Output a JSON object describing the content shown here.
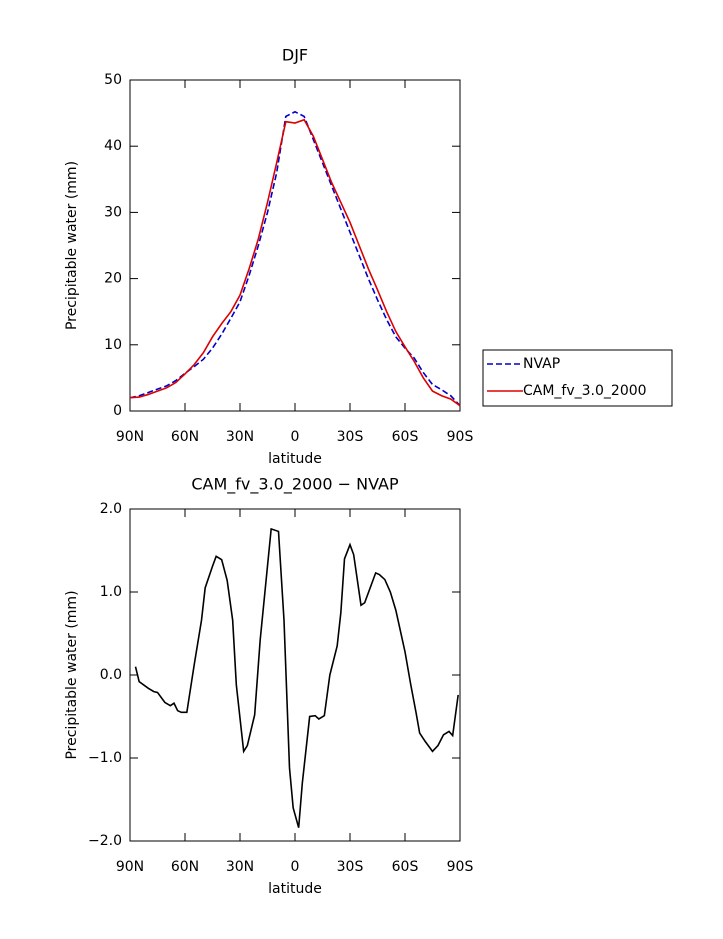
{
  "chart_data": [
    {
      "type": "line",
      "title": "DJF",
      "xlabel": "latitude",
      "ylabel": "Precipitable water (mm)",
      "x": [
        90,
        85,
        80,
        75,
        70,
        65,
        60,
        55,
        50,
        45,
        40,
        35,
        30,
        25,
        20,
        15,
        10,
        5,
        0,
        -5,
        -10,
        -15,
        -20,
        -25,
        -30,
        -35,
        -40,
        -45,
        -50,
        -55,
        -60,
        -65,
        -70,
        -75,
        -80,
        -85,
        -90
      ],
      "series": [
        {
          "name": "NVAP",
          "color": "#0000cc",
          "dash": true,
          "values": [
            2.0,
            2.3,
            2.8,
            3.3,
            3.8,
            4.6,
            5.7,
            6.7,
            7.8,
            9.5,
            11.6,
            14,
            16.5,
            20.5,
            25,
            30,
            36,
            44.5,
            45.2,
            44.5,
            41,
            37.5,
            34,
            30.5,
            27,
            23.5,
            20,
            16.8,
            13.8,
            11.2,
            9.5,
            8,
            5.8,
            4,
            3.2,
            2.3,
            0.8
          ]
        },
        {
          "name": "CAM_fv_3.0_2000",
          "color": "#dd0000",
          "dash": false,
          "values": [
            2.0,
            2.1,
            2.5,
            3.0,
            3.5,
            4.3,
            5.6,
            7.0,
            8.8,
            11.2,
            13.2,
            15,
            17.5,
            21.5,
            26,
            31.5,
            37.5,
            43.7,
            43.5,
            44,
            41.5,
            38,
            34.5,
            31.5,
            28.5,
            25,
            21.5,
            18.3,
            15,
            12,
            9.7,
            7.5,
            5,
            3,
            2.3,
            1.8,
            0.8
          ]
        }
      ],
      "xlim": [
        90,
        -90
      ],
      "xticks": [
        {
          "value": 90,
          "label": "90N"
        },
        {
          "value": 60,
          "label": "60N"
        },
        {
          "value": 30,
          "label": "30N"
        },
        0,
        {
          "value": -30,
          "label": "30S"
        },
        {
          "value": -60,
          "label": "60S"
        },
        {
          "value": -90,
          "label": "90S"
        }
      ],
      "ylim": [
        0,
        50
      ],
      "yticks": [
        0,
        10,
        20,
        30,
        40,
        50
      ],
      "legend": "right"
    },
    {
      "type": "line",
      "title": "CAM_fv_3.0_2000 − NVAP",
      "xlabel": "latitude",
      "ylabel": "Precipitable water (mm)",
      "x": [
        87,
        85,
        80,
        77,
        75,
        71,
        68,
        66,
        64,
        62,
        59,
        55,
        51,
        49,
        45,
        43,
        40,
        37,
        34,
        32,
        28,
        26,
        22,
        19,
        13,
        9,
        6,
        3,
        1,
        -2,
        -4,
        -8,
        -11,
        -13,
        -16,
        -19,
        -23,
        -25,
        -27,
        -30,
        -32,
        -36,
        -38,
        -41,
        -44,
        -46,
        -49,
        -52,
        -55,
        -57,
        -60,
        -63,
        -66,
        -68,
        -71,
        -75,
        -78,
        -81,
        -84,
        -86,
        -89
      ],
      "series": [
        {
          "name": "CAM_fv_3.0_2000 − NVAP",
          "color": "#000000",
          "dash": false,
          "values": [
            0.1,
            -0.08,
            -0.16,
            -0.2,
            -0.21,
            -0.33,
            -0.37,
            -0.34,
            -0.43,
            -0.45,
            -0.45,
            0.12,
            0.66,
            1.05,
            1.31,
            1.43,
            1.39,
            1.14,
            0.66,
            -0.12,
            -0.92,
            -0.85,
            -0.48,
            0.42,
            1.76,
            1.73,
            0.66,
            -1.12,
            -1.6,
            -1.84,
            -1.3,
            -0.5,
            -0.49,
            -0.53,
            -0.49,
            0.0,
            0.35,
            0.75,
            1.4,
            1.57,
            1.45,
            0.84,
            0.87,
            1.05,
            1.23,
            1.21,
            1.15,
            1.0,
            0.78,
            0.58,
            0.28,
            -0.1,
            -0.45,
            -0.7,
            -0.8,
            -0.92,
            -0.85,
            -0.72,
            -0.68,
            -0.73,
            -0.24
          ]
        }
      ],
      "xlim": [
        90,
        -90
      ],
      "xticks": [
        {
          "value": 90,
          "label": "90N"
        },
        {
          "value": 60,
          "label": "60N"
        },
        {
          "value": 30,
          "label": "30N"
        },
        0,
        {
          "value": -30,
          "label": "30S"
        },
        {
          "value": -60,
          "label": "60S"
        },
        {
          "value": -90,
          "label": "90S"
        }
      ],
      "ylim": [
        -2,
        2
      ],
      "yticks": [
        {
          "value": -2,
          "label": "−2.0"
        },
        {
          "value": -1,
          "label": "−1.0"
        },
        {
          "value": 0,
          "label": "0.0"
        },
        {
          "value": 1,
          "label": "1.0"
        },
        {
          "value": 2,
          "label": "2.0"
        }
      ]
    }
  ]
}
